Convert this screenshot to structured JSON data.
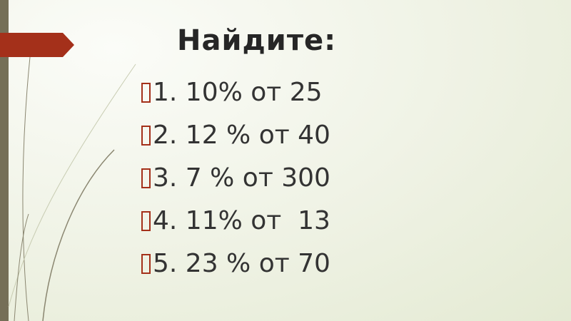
{
  "slide": {
    "title": "Найдите:",
    "items": [
      "1. 10% от 25",
      "2. 12 % от 40",
      "3. 7 % от 300",
      "4. 11% от  13",
      "5. 23 % от 70"
    ],
    "colors": {
      "accent": "#a4301a",
      "bar": "#756f57",
      "text": "#262626"
    }
  }
}
